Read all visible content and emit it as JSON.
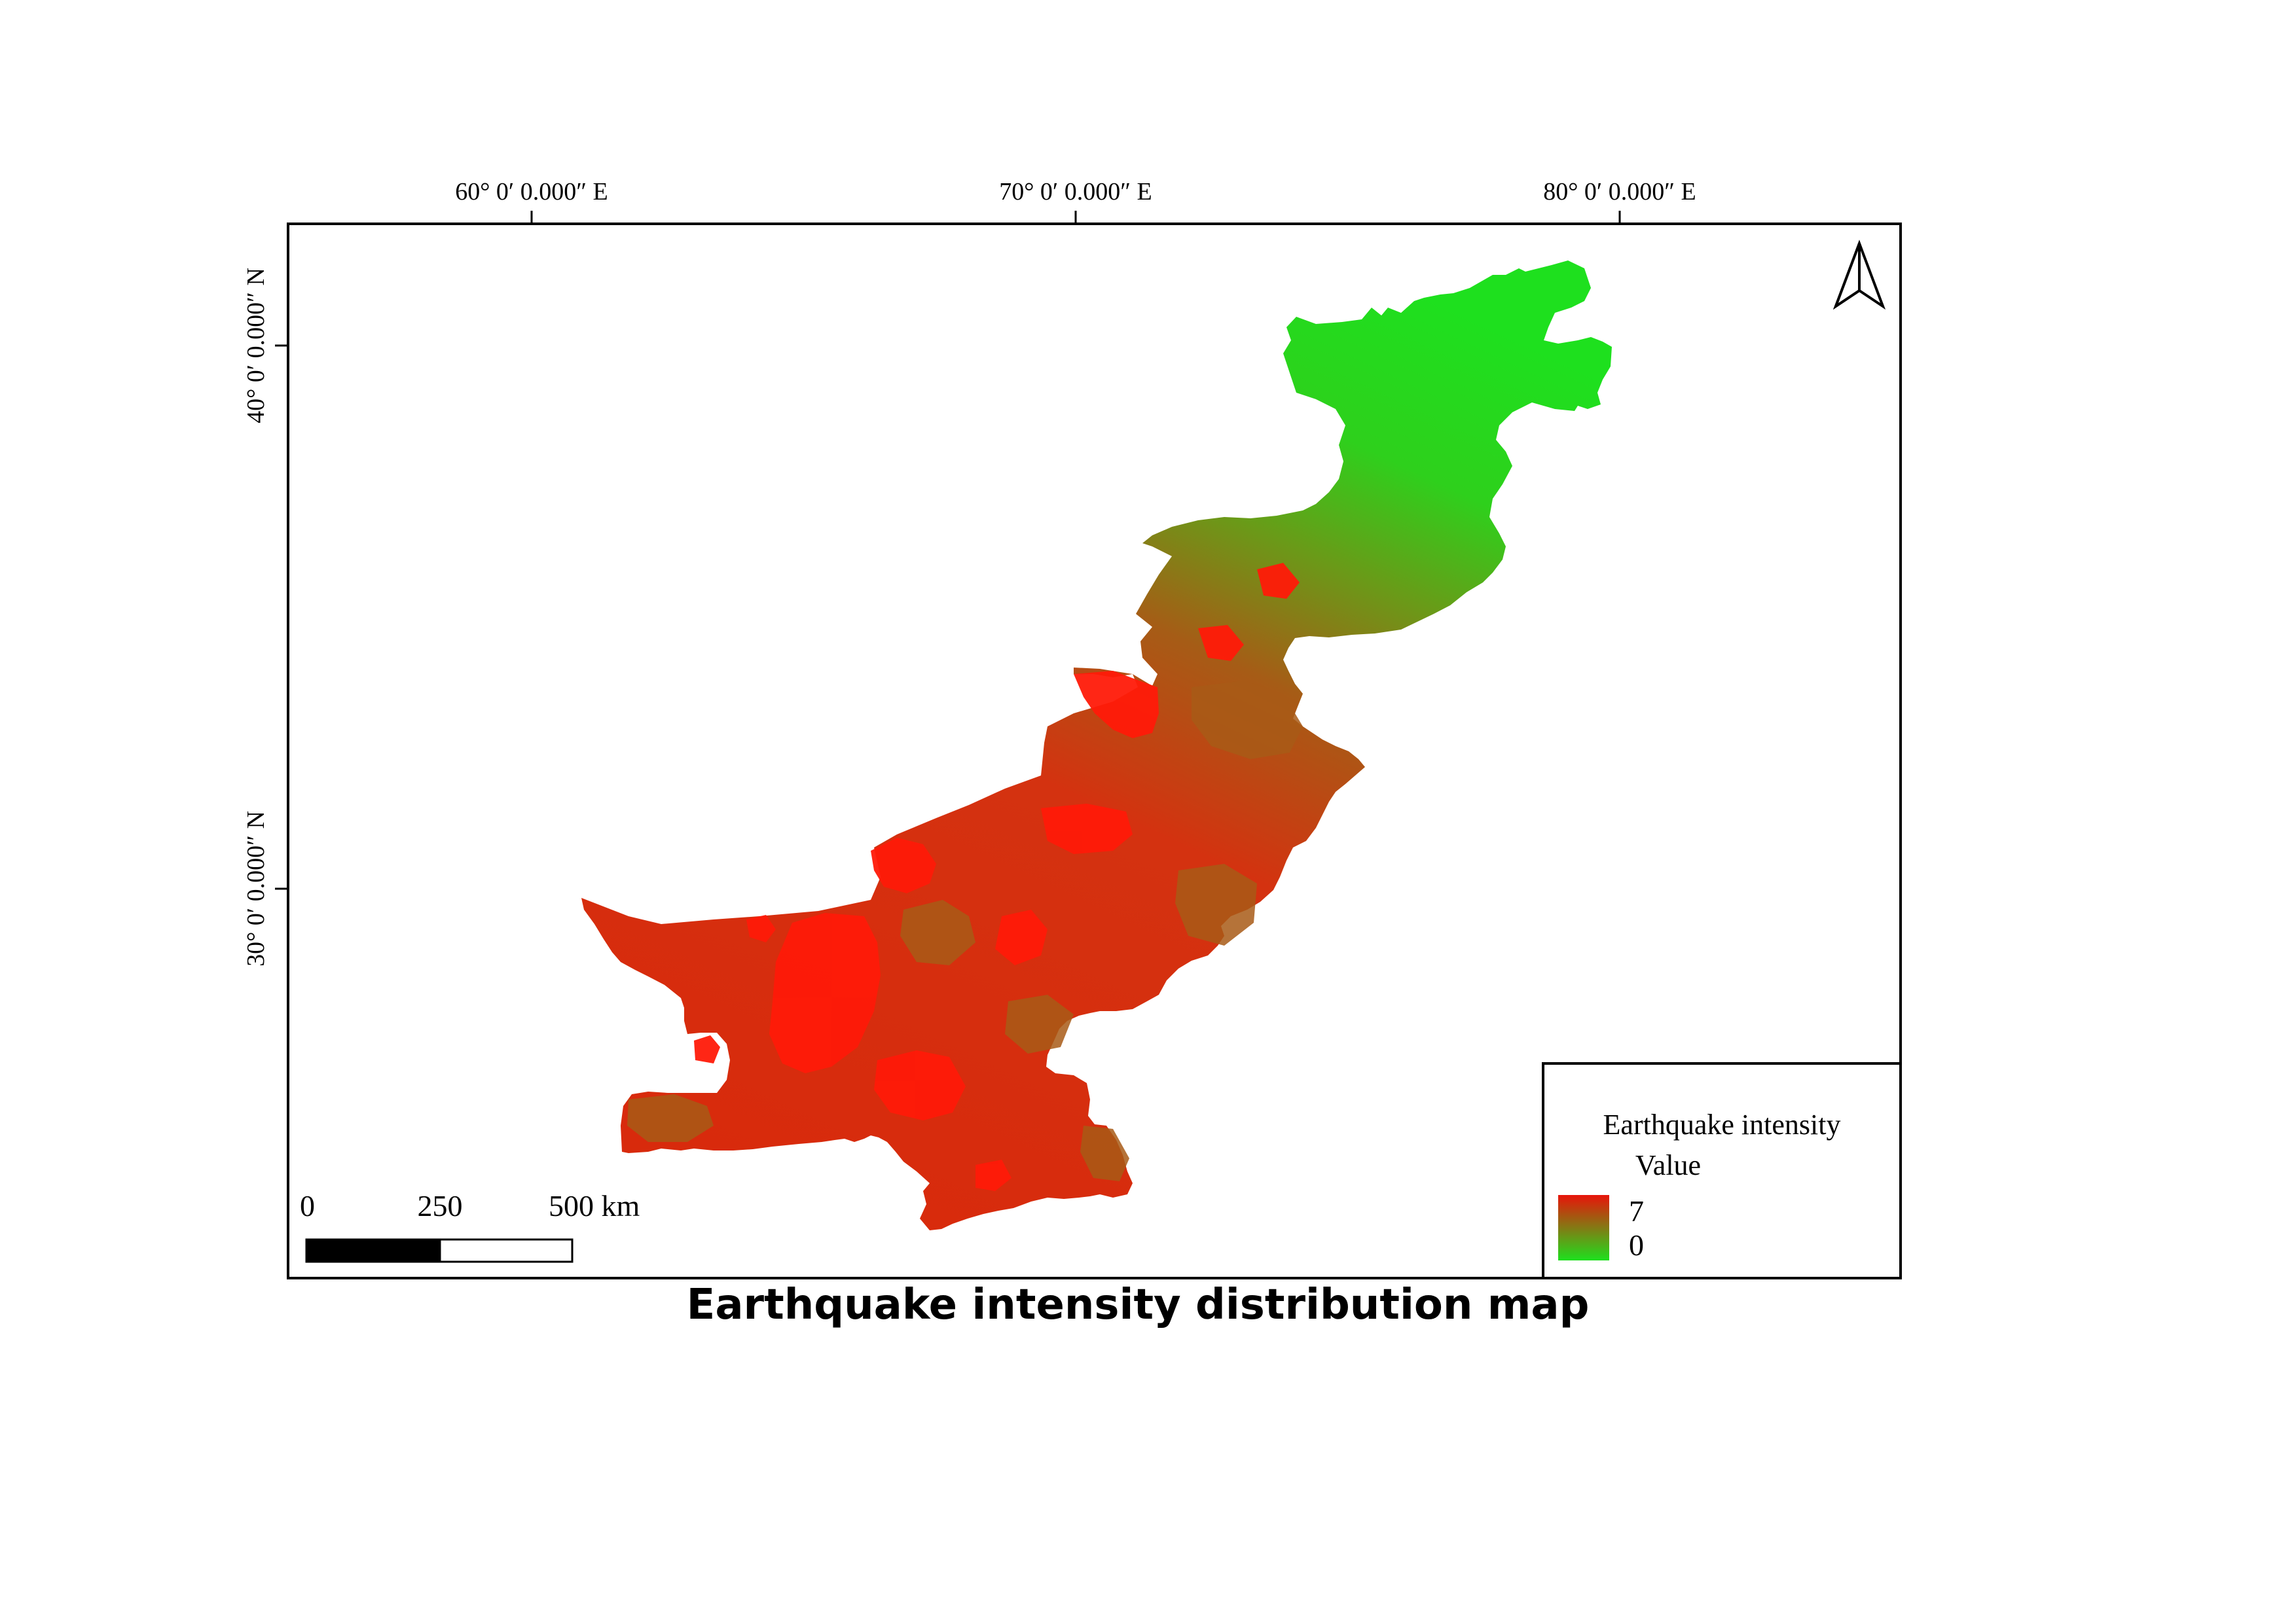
{
  "map": {
    "title": "Earthquake intensity distribution map",
    "graticule": {
      "longitude_labels": [
        "60° 0′ 0.000″ E",
        "70° 0′ 0.000″ E",
        "80° 0′ 0.000″ E"
      ],
      "latitude_labels": [
        "40° 0′ 0.000″ N",
        "30° 0′ 0.000″ N"
      ]
    },
    "scale_bar": {
      "labels": [
        "0",
        "250",
        "500 km"
      ]
    },
    "legend": {
      "title": "Earthquake intensity",
      "subtitle": "Value",
      "max_label": "7",
      "min_label": "0",
      "high_color": "#e8140a",
      "low_color": "#1ee01e"
    },
    "north_arrow_icon": "north-arrow-icon",
    "colors": {
      "high_intensity": "#dd2a0c",
      "mid_intensity": "#a85a16",
      "low_intensity": "#22d81a"
    }
  }
}
